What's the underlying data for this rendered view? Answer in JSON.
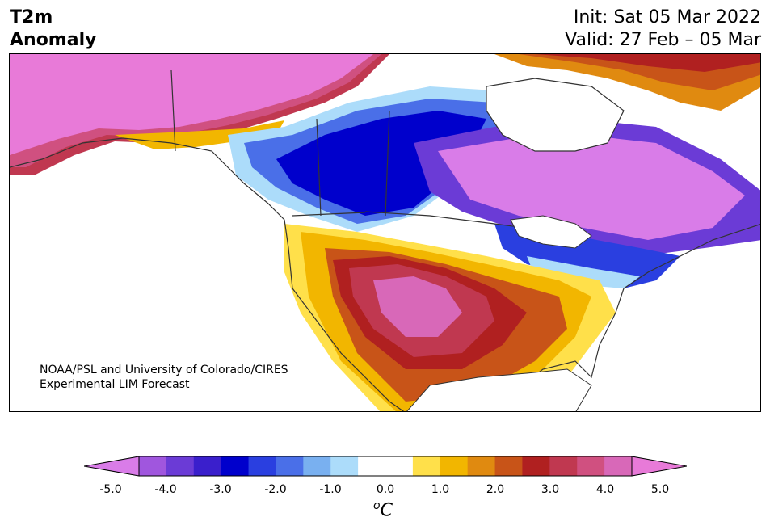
{
  "header": {
    "title_line1": "T2m",
    "title_line2": "Anomaly",
    "init": "Init: Sat 05 Mar 2022",
    "valid": "Valid: 27 Feb – 05 Mar"
  },
  "map": {
    "credit_line1": "NOAA/PSL and University of Colorado/CIRES",
    "credit_line2": "Experimental LIM Forecast",
    "regions": [
      "alaska-warm-anomaly",
      "western-canada-cold-anomaly",
      "central-canada-cold-anomaly",
      "southern-us-warm-anomaly",
      "northeast-cold-anomaly",
      "greenland-warm-anomaly"
    ]
  },
  "colorbar": {
    "unit_base": "C",
    "unit_sup": "o",
    "tick_labels": [
      "-5.0",
      "-4.0",
      "-3.0",
      "-2.0",
      "-1.0",
      "0.0",
      "1.0",
      "2.0",
      "3.0",
      "4.0",
      "5.0"
    ],
    "colors": [
      "#d97ce8",
      "#a056de",
      "#6b3bd6",
      "#3a1fcc",
      "#0000cc",
      "#2a3fe0",
      "#4a6fe8",
      "#79b0f0",
      "#acdcfa",
      "#ffffff",
      "#ffffff",
      "#ffe04a",
      "#f2b600",
      "#e08a10",
      "#c85418",
      "#b02020",
      "#c03850",
      "#d05080",
      "#d868b8",
      "#e87ad8"
    ]
  }
}
